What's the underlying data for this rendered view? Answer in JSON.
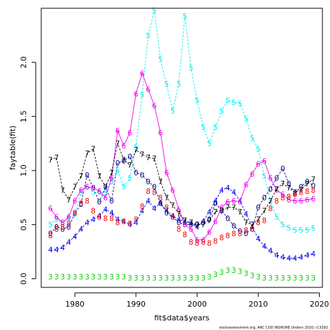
{
  "chart_data": {
    "type": "line",
    "xlabel": "fit$data$years",
    "ylabel": "faytable(fit)",
    "xlim": [
      1974.5,
      2020.5
    ],
    "ylim": [
      -0.08,
      2.5
    ],
    "xticks": [
      1980,
      1990,
      2000,
      2010,
      2020
    ],
    "xtick_labels": [
      "1980",
      "1990",
      "2000",
      "2010",
      "2020"
    ],
    "yticks": [
      0,
      0.5,
      1,
      1.5,
      2
    ],
    "ytick_labels": [
      "0.0",
      "0.5",
      "1.0",
      "1.5",
      "2.0"
    ],
    "grid": false,
    "legend": "none",
    "footnote": "stockassessment.org, ARC COD INSHORE Underv 2020, r13392",
    "x": [
      1976,
      1977,
      1978,
      1979,
      1980,
      1981,
      1982,
      1983,
      1984,
      1985,
      1986,
      1987,
      1988,
      1989,
      1990,
      1991,
      1992,
      1993,
      1994,
      1995,
      1996,
      1997,
      1998,
      1999,
      2000,
      2001,
      2002,
      2003,
      2004,
      2005,
      2006,
      2007,
      2008,
      2009,
      2010,
      2011,
      2012,
      2013,
      2014,
      2015,
      2016,
      2017,
      2018,
      2019
    ],
    "series": [
      {
        "label": "3",
        "color": "#00cd00",
        "line_style": "none",
        "values": [
          0.02,
          0.02,
          0.02,
          0.02,
          0.02,
          0.02,
          0.02,
          0.02,
          0.02,
          0.02,
          0.02,
          0.02,
          0.02,
          0.01,
          0.01,
          0.01,
          0.01,
          0.01,
          0.01,
          0.01,
          0.01,
          0.01,
          0.01,
          0.01,
          0.01,
          0.01,
          0.02,
          0.04,
          0.06,
          0.08,
          0.08,
          0.07,
          0.05,
          0.03,
          0.02,
          0.01,
          0.01,
          0.01,
          0.01,
          0.01,
          0.01,
          0.01,
          0.01,
          0.01
        ]
      },
      {
        "label": "4",
        "color": "#0000ee",
        "line_style": "dash",
        "values": [
          0.27,
          0.27,
          0.29,
          0.34,
          0.39,
          0.46,
          0.52,
          0.55,
          0.58,
          0.64,
          0.61,
          0.55,
          0.53,
          0.5,
          0.52,
          0.63,
          0.72,
          0.65,
          0.7,
          0.63,
          0.58,
          0.55,
          0.53,
          0.51,
          0.48,
          0.53,
          0.62,
          0.72,
          0.82,
          0.84,
          0.8,
          0.72,
          0.6,
          0.48,
          0.37,
          0.3,
          0.26,
          0.22,
          0.2,
          0.19,
          0.19,
          0.2,
          0.22,
          0.23
        ]
      },
      {
        "label": "0",
        "color": "#00008b",
        "line_style": "dash",
        "values": [
          0.42,
          0.48,
          0.46,
          0.48,
          0.6,
          0.69,
          0.96,
          0.84,
          0.71,
          0.85,
          0.72,
          1.07,
          1.09,
          1.13,
          0.98,
          0.96,
          0.9,
          0.85,
          0.7,
          0.61,
          0.57,
          0.52,
          0.5,
          0.5,
          0.5,
          0.52,
          0.55,
          0.7,
          0.63,
          0.56,
          0.49,
          0.44,
          0.42,
          0.46,
          0.66,
          0.75,
          0.83,
          0.93,
          1.02,
          0.88,
          0.79,
          0.85,
          0.9,
          0.86
        ]
      },
      {
        "label": "5",
        "color": "#00eeee",
        "line_style": "dash",
        "values": [
          0.5,
          0.55,
          0.52,
          0.56,
          0.6,
          0.8,
          0.85,
          0.8,
          0.8,
          0.8,
          0.9,
          1.0,
          0.85,
          0.93,
          1.22,
          1.7,
          2.25,
          2.48,
          2.03,
          1.8,
          1.55,
          1.8,
          2.43,
          1.95,
          1.65,
          1.4,
          1.25,
          1.4,
          1.55,
          1.65,
          1.63,
          1.62,
          1.48,
          1.3,
          1.2,
          0.95,
          0.72,
          0.57,
          0.5,
          0.47,
          0.45,
          0.45,
          0.45,
          0.47
        ]
      },
      {
        "label": "6",
        "color": "#ee00ee",
        "line_style": "solid",
        "values": [
          0.65,
          0.57,
          0.52,
          0.57,
          0.72,
          0.82,
          0.85,
          0.84,
          0.81,
          0.75,
          0.93,
          1.37,
          1.23,
          1.35,
          1.71,
          1.9,
          1.75,
          1.6,
          1.35,
          0.98,
          0.82,
          0.64,
          0.5,
          0.46,
          0.36,
          0.36,
          0.43,
          0.53,
          0.66,
          0.71,
          0.72,
          0.71,
          0.87,
          0.97,
          1.06,
          1.09,
          0.93,
          0.82,
          0.78,
          0.73,
          0.72,
          0.72,
          0.73,
          0.74
        ]
      },
      {
        "label": "7",
        "color": "#000000",
        "line_style": "dash",
        "values": [
          1.1,
          1.12,
          0.82,
          0.73,
          0.85,
          0.95,
          1.16,
          1.2,
          0.95,
          0.85,
          0.98,
          1.25,
          1.1,
          1.05,
          1.19,
          1.15,
          1.12,
          1.11,
          0.9,
          0.75,
          0.68,
          0.6,
          0.54,
          0.52,
          0.5,
          0.5,
          0.54,
          0.62,
          0.63,
          0.66,
          0.66,
          0.62,
          0.52,
          0.5,
          0.55,
          0.63,
          0.72,
          0.83,
          0.88,
          0.84,
          0.8,
          0.82,
          0.88,
          0.92
        ]
      },
      {
        "label": "8",
        "color": "#ee0000",
        "line_style": "none",
        "values": [
          0.4,
          0.46,
          0.48,
          0.51,
          0.61,
          0.7,
          0.72,
          0.63,
          0.57,
          0.56,
          0.56,
          0.52,
          0.53,
          0.51,
          0.55,
          0.67,
          0.81,
          0.8,
          0.75,
          0.66,
          0.57,
          0.46,
          0.41,
          0.34,
          0.33,
          0.34,
          0.33,
          0.35,
          0.38,
          0.4,
          0.42,
          0.42,
          0.45,
          0.46,
          0.52,
          0.54,
          0.65,
          0.72,
          0.75,
          0.76,
          0.78,
          0.8,
          0.81,
          0.82
        ]
      }
    ]
  }
}
